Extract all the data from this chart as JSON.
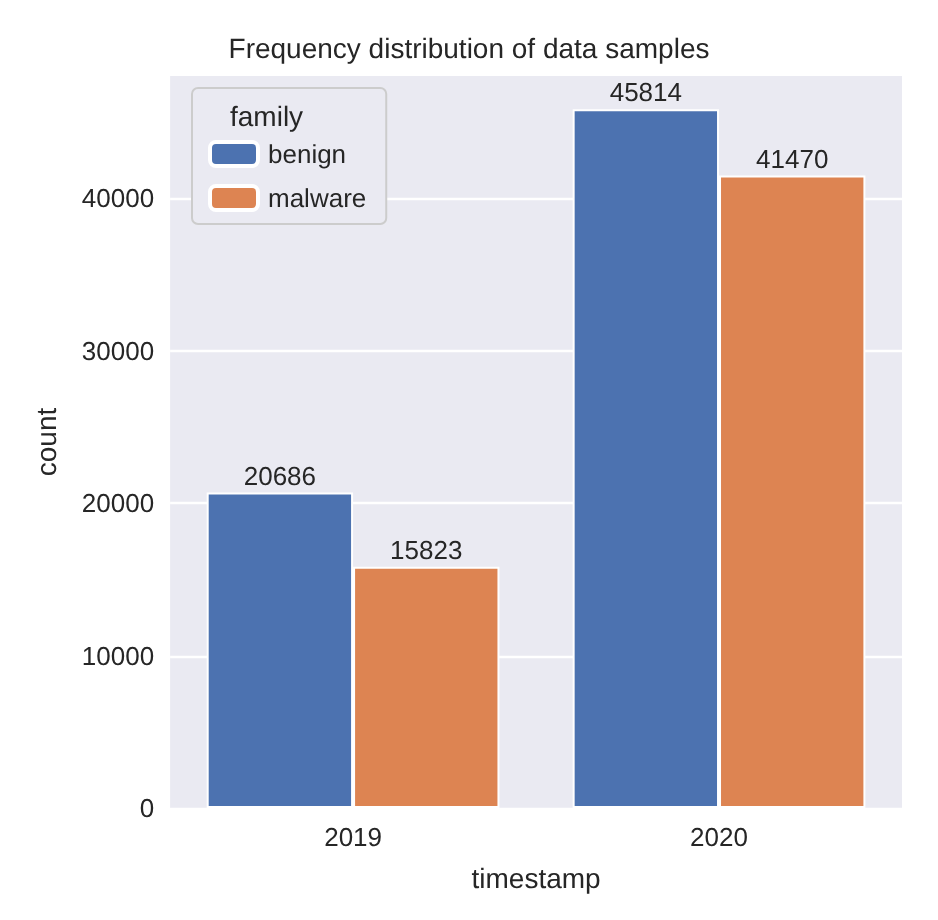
{
  "chart_data": {
    "type": "bar",
    "title": "Frequency distribution of data samples",
    "xlabel": "timestamp",
    "ylabel": "count",
    "legend_title": "family",
    "categories": [
      "2019",
      "2020"
    ],
    "series": [
      {
        "name": "benign",
        "color": "#4c72b0",
        "values": [
          20686,
          45814
        ]
      },
      {
        "name": "malware",
        "color": "#dd8452",
        "values": [
          15823,
          41470
        ]
      }
    ],
    "ylim": [
      0,
      48000
    ],
    "yticks": [
      0,
      10000,
      20000,
      30000,
      40000
    ],
    "grid": "y",
    "legend": "top left",
    "data_labels": true
  }
}
